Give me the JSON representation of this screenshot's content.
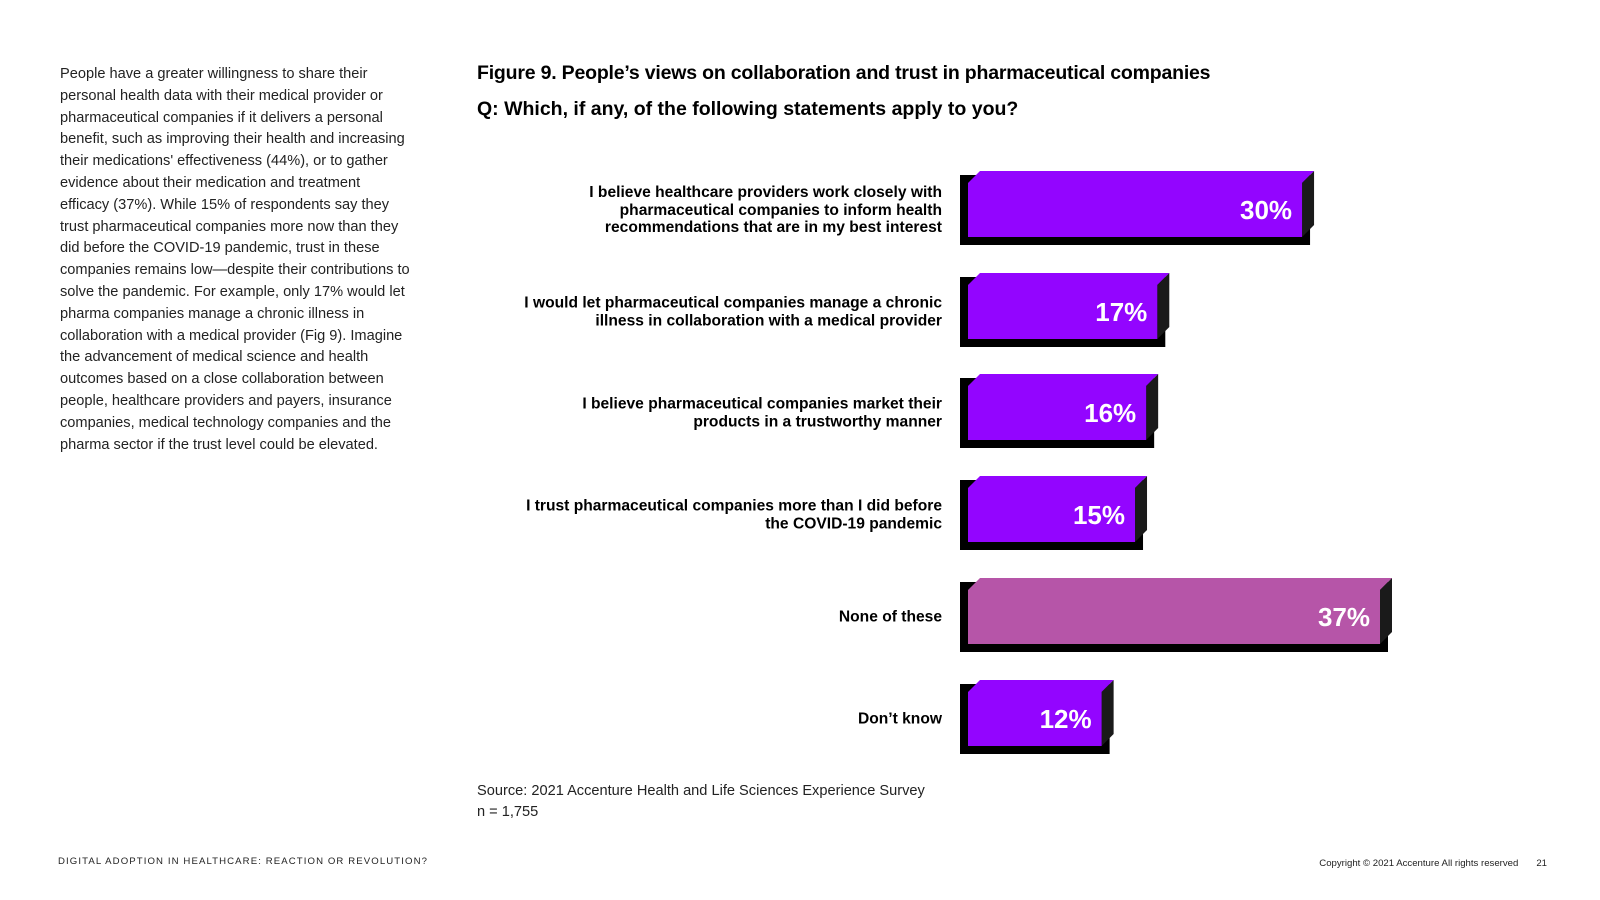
{
  "intro_text": "People have a greater willingness to share their personal health data with their medical provider or pharmaceutical companies if it delivers a personal benefit, such as improving their health and increasing their medications' effectiveness (44%), or to gather evidence about their medication and treatment efficacy (37%). While 15% of respondents say they trust pharmaceutical companies more now than they did before the COVID-19 pandemic, trust in these companies remains low—despite their contributions to solve the pandemic. For example, only 17% would let pharma companies manage a chronic illness in collaboration with a medical provider (Fig 9). Imagine the advancement of medical science and health outcomes based on a close collaboration between people, healthcare providers and payers, insurance companies, medical technology companies and the pharma sector if the trust level could be elevated.",
  "chart_data": {
    "type": "bar",
    "orientation": "horizontal",
    "title": "Figure 9. People’s views on collaboration and trust in pharmaceutical companies",
    "subtitle": "Q: Which, if any, of the following statements apply to you?",
    "categories": [
      "I believe healthcare providers work closely with pharmaceutical companies to inform health recommendations that are in my best interest",
      "I would let pharmaceutical companies manage a chronic illness in collaboration with a medical provider",
      "I believe pharmaceutical companies market their products in a trustworthy manner",
      "I trust pharmaceutical companies more than I did before the COVID-19 pandemic",
      "None of these",
      "Don’t know"
    ],
    "values": [
      30,
      17,
      16,
      15,
      37,
      12
    ],
    "value_labels": [
      "30%",
      "17%",
      "16%",
      "15%",
      "37%",
      "12%"
    ],
    "unit": "%",
    "xlim": [
      0,
      37
    ],
    "colors": [
      "#9305FF",
      "#9305FF",
      "#9305FF",
      "#9305FF",
      "#B655A8",
      "#9305FF"
    ],
    "shadow_color": "#000000",
    "label_color": "#FFFFFF",
    "grid": false,
    "legend": "none"
  },
  "source": {
    "line1": "Source: 2021 Accenture Health and Life Sciences Experience Survey",
    "line2": "n = 1,755"
  },
  "footer": {
    "left": "DIGITAL ADOPTION IN HEALTHCARE: REACTION OR REVOLUTION?",
    "copyright": "Copyright © 2021 Accenture All rights reserved",
    "page": "21"
  }
}
